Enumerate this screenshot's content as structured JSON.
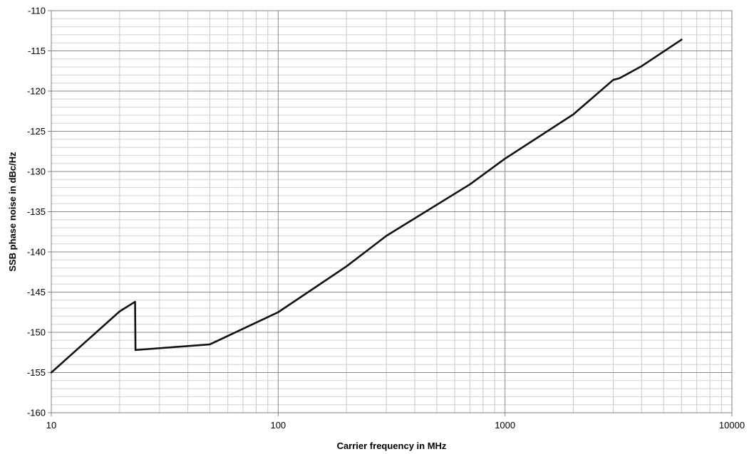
{
  "chart_data": {
    "type": "line",
    "title": "",
    "xlabel": "Carrier frequency in MHz",
    "ylabel": "SSB phase noise in dBc/Hz",
    "xscale": "log",
    "xlim": [
      10,
      10000
    ],
    "ylim": [
      -160,
      -110
    ],
    "x_ticks": [
      "10",
      "100",
      "1000",
      "10000"
    ],
    "y_ticks": [
      "-110",
      "-115",
      "-120",
      "-125",
      "-130",
      "-135",
      "-140",
      "-145",
      "-150",
      "-155",
      "-160"
    ],
    "grid": true,
    "legend": "none",
    "line_color": "#111111",
    "series": [
      {
        "x": [
          10,
          20,
          23.4,
          23.5,
          50,
          100,
          200,
          300,
          700,
          1000,
          2000,
          3000,
          3200,
          4000,
          6000
        ],
        "y": [
          -155.0,
          -147.4,
          -146.2,
          -152.2,
          -151.5,
          -147.5,
          -141.8,
          -138.0,
          -131.6,
          -128.4,
          -122.9,
          -118.6,
          -118.4,
          -116.9,
          -113.6
        ]
      }
    ]
  }
}
